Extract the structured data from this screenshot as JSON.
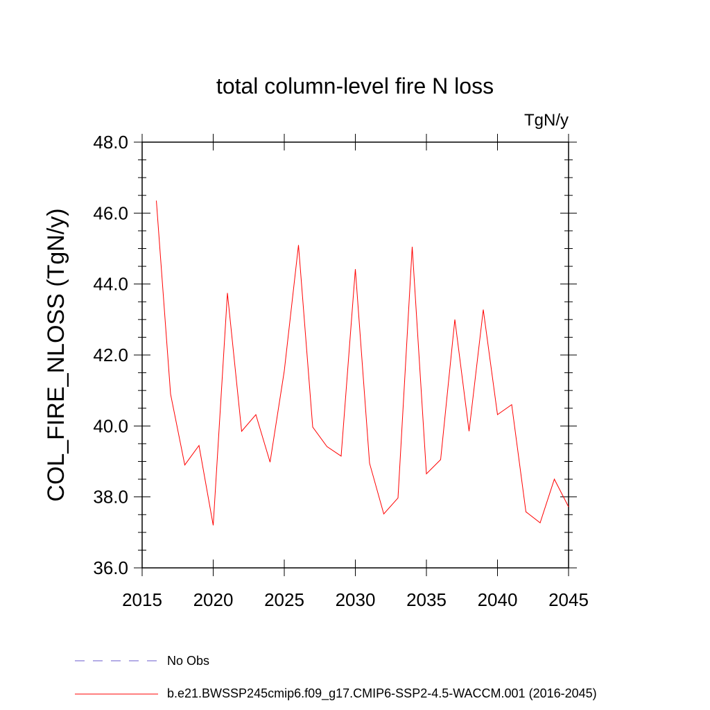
{
  "chart_data": {
    "type": "line",
    "title": "total column-level fire N loss",
    "units": "TgN/y",
    "ylabel": "COL_FIRE_NLOSS  (TgN/y)",
    "xlabel": "",
    "xlim": [
      2015,
      2045
    ],
    "ylim": [
      36.0,
      48.0
    ],
    "x_ticks": [
      2015,
      2020,
      2025,
      2030,
      2035,
      2040,
      2045
    ],
    "y_ticks": [
      "36.0",
      "38.0",
      "40.0",
      "42.0",
      "44.0",
      "46.0",
      "48.0"
    ],
    "x": [
      2016,
      2017,
      2018,
      2019,
      2020,
      2021,
      2022,
      2023,
      2024,
      2025,
      2026,
      2027,
      2028,
      2029,
      2030,
      2031,
      2032,
      2033,
      2034,
      2035,
      2036,
      2037,
      2038,
      2039,
      2040,
      2041,
      2042,
      2043,
      2044,
      2045
    ],
    "series": [
      {
        "name": "b.e21.BWSSP245cmip6.f09_g17.CMIP6-SSP2-4.5-WACCM.001 (2016-2045)",
        "color": "#ff0000",
        "values": [
          46.35,
          40.9,
          38.9,
          39.45,
          37.2,
          43.75,
          39.85,
          40.32,
          38.98,
          41.55,
          45.1,
          39.97,
          39.42,
          39.15,
          44.42,
          38.95,
          37.52,
          37.97,
          45.05,
          38.65,
          39.05,
          43.0,
          39.85,
          43.28,
          40.32,
          40.6,
          37.58,
          37.27,
          38.5,
          37.72
        ]
      }
    ],
    "legend": [
      {
        "label": "No Obs",
        "color": "#6a5acd",
        "style": "dashed"
      },
      {
        "label": "b.e21.BWSSP245cmip6.f09_g17.CMIP6-SSP2-4.5-WACCM.001 (2016-2045)",
        "color": "#ff0000",
        "style": "solid"
      }
    ]
  }
}
